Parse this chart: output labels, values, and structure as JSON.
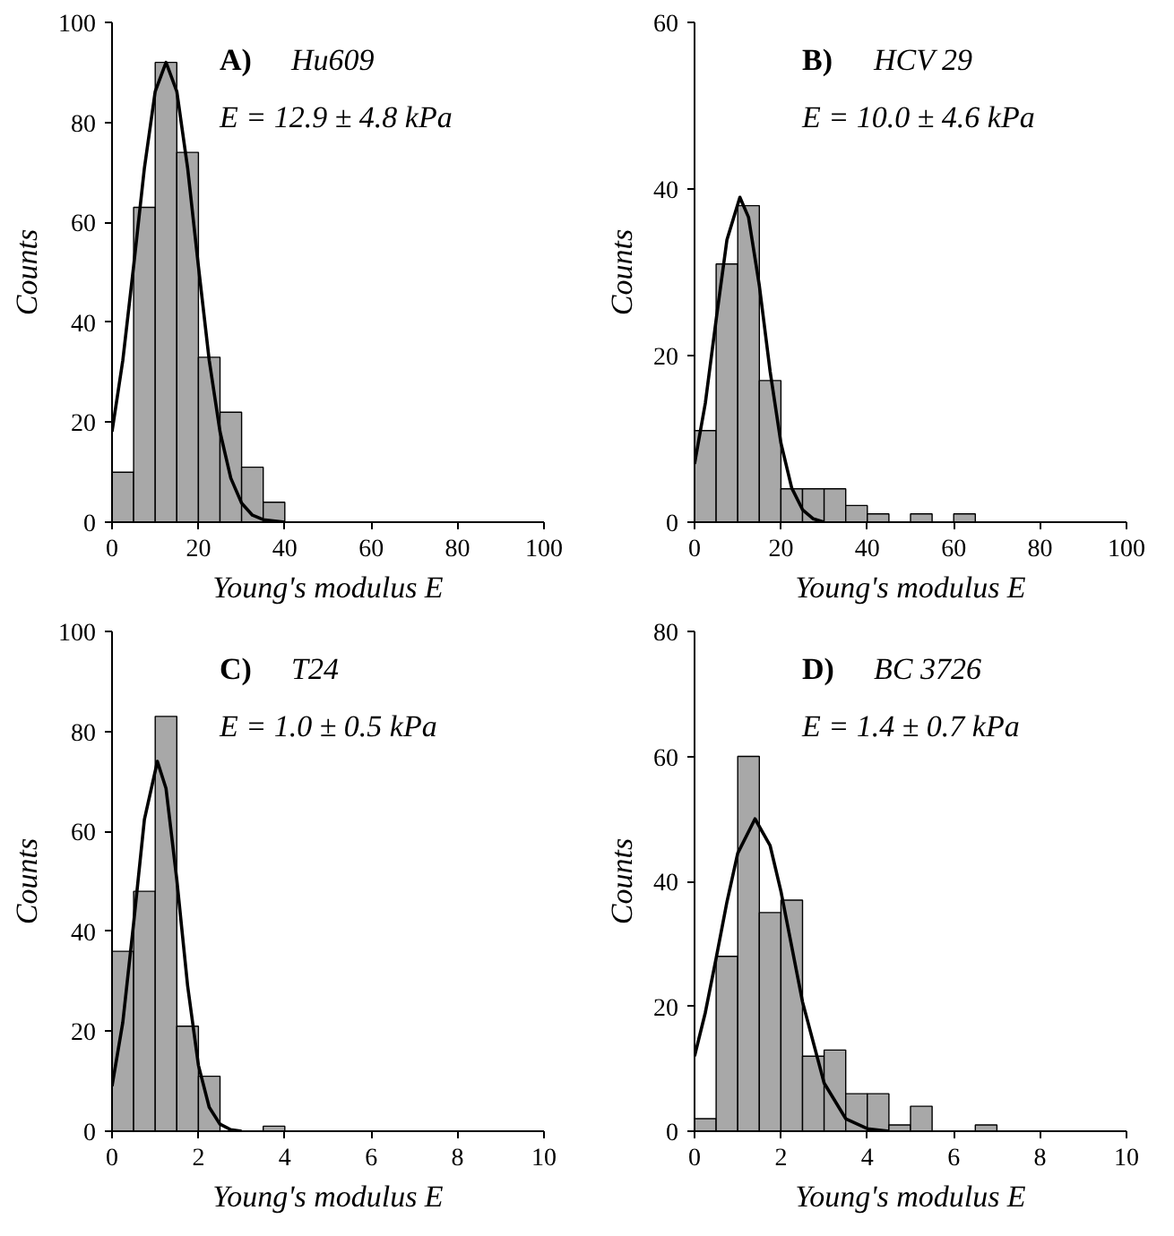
{
  "chart_data": [
    {
      "type": "histogram",
      "annotations": [
        "A)",
        "Hu609",
        "E = 12.9 ± 4.8 kPa"
      ],
      "xlabel": "Young's modulus E",
      "ylabel": "Counts",
      "color": "#a8a8a8",
      "bins": [
        0,
        5,
        10,
        15,
        20,
        25,
        30,
        35,
        40
      ],
      "values": [
        10,
        63,
        92,
        74,
        33,
        22,
        11,
        4
      ],
      "xlim": [
        0,
        100
      ],
      "xticks": [
        0,
        20,
        40,
        60,
        80,
        100
      ],
      "ylim": [
        0,
        100
      ],
      "yticks": [
        0,
        20,
        40,
        60,
        80,
        100
      ],
      "series": [
        {
          "type": "line",
          "color": "#000000",
          "x": [
            0,
            2.5,
            5,
            7.5,
            10,
            12.5,
            15,
            17.5,
            20,
            22.5,
            25,
            27.5,
            30,
            32.5,
            35,
            40
          ],
          "values": [
            18.1,
            32.4,
            51.2,
            70.9,
            86.2,
            92,
            86.2,
            70.9,
            51.2,
            32.4,
            18.1,
            8.8,
            3.8,
            1.4,
            0.5,
            0
          ]
        }
      ]
    },
    {
      "type": "histogram",
      "annotations": [
        "B)",
        "HCV 29",
        "E = 10.0 ± 4.6 kPa"
      ],
      "xlabel": "Young's modulus E",
      "ylabel": "Counts",
      "color": "#a8a8a8",
      "bins": [
        0,
        5,
        10,
        15,
        20,
        25,
        30,
        35,
        40,
        45,
        50,
        55,
        60,
        65
      ],
      "values": [
        11,
        31,
        38,
        17,
        4,
        4,
        4,
        2,
        1,
        0,
        1,
        0,
        1
      ],
      "xlim": [
        0,
        100
      ],
      "xticks": [
        0,
        20,
        40,
        60,
        80,
        100
      ],
      "ylim": [
        0,
        60
      ],
      "yticks": [
        0,
        20,
        40,
        60
      ],
      "series": [
        {
          "type": "line",
          "color": "#000000",
          "x": [
            0,
            2.5,
            5,
            7.5,
            10.5,
            12.5,
            15,
            17.5,
            20,
            22.5,
            25,
            27.5,
            30
          ],
          "values": [
            7.0,
            14.3,
            24.3,
            33.9,
            39,
            36.6,
            28.4,
            18.1,
            9.5,
            4.1,
            1.5,
            0.4,
            0
          ]
        }
      ]
    },
    {
      "type": "histogram",
      "annotations": [
        "C)",
        "T24",
        "E = 1.0 ± 0.5 kPa"
      ],
      "xlabel": "Young's modulus E",
      "ylabel": "Counts",
      "color": "#a8a8a8",
      "bins": [
        0,
        0.5,
        1,
        1.5,
        2,
        2.5,
        3,
        3.5,
        4
      ],
      "values": [
        36,
        48,
        83,
        21,
        11,
        0,
        0,
        1
      ],
      "xlim": [
        0,
        10
      ],
      "xticks": [
        0,
        2,
        4,
        6,
        8,
        10
      ],
      "ylim": [
        0,
        100
      ],
      "yticks": [
        0,
        20,
        40,
        60,
        80,
        100
      ],
      "series": [
        {
          "type": "line",
          "color": "#000000",
          "x": [
            0,
            0.25,
            0.5,
            0.75,
            1.05,
            1.25,
            1.5,
            1.75,
            2,
            2.25,
            2.5,
            2.75,
            3
          ],
          "values": [
            9.0,
            21.8,
            41.6,
            62.4,
            74,
            68.6,
            50.3,
            29.1,
            13.2,
            4.8,
            1.4,
            0.3,
            0
          ]
        }
      ]
    },
    {
      "type": "histogram",
      "annotations": [
        "D)",
        "BC 3726",
        "E = 1.4 ± 0.7 kPa"
      ],
      "xlabel": "Young's modulus E",
      "ylabel": "Counts",
      "color": "#a8a8a8",
      "bins": [
        0,
        0.5,
        1,
        1.5,
        2,
        2.5,
        3,
        3.5,
        4,
        4.5,
        5,
        5.5,
        6,
        6.5,
        7
      ],
      "values": [
        2,
        28,
        60,
        35,
        37,
        12,
        13,
        6,
        6,
        1,
        4,
        0,
        0,
        1
      ],
      "xlim": [
        0,
        10
      ],
      "xticks": [
        0,
        2,
        4,
        6,
        8,
        10
      ],
      "ylim": [
        0,
        80
      ],
      "yticks": [
        0,
        20,
        40,
        60,
        80
      ],
      "series": [
        {
          "type": "line",
          "color": "#000000",
          "x": [
            0,
            0.25,
            0.5,
            0.75,
            1,
            1.4,
            1.75,
            2,
            2.5,
            3,
            3.5,
            4,
            4.5
          ],
          "values": [
            12.0,
            19.0,
            27.7,
            36.7,
            44.5,
            50,
            45.7,
            38.4,
            20.7,
            7.7,
            2.0,
            0.4,
            0
          ]
        }
      ]
    }
  ]
}
